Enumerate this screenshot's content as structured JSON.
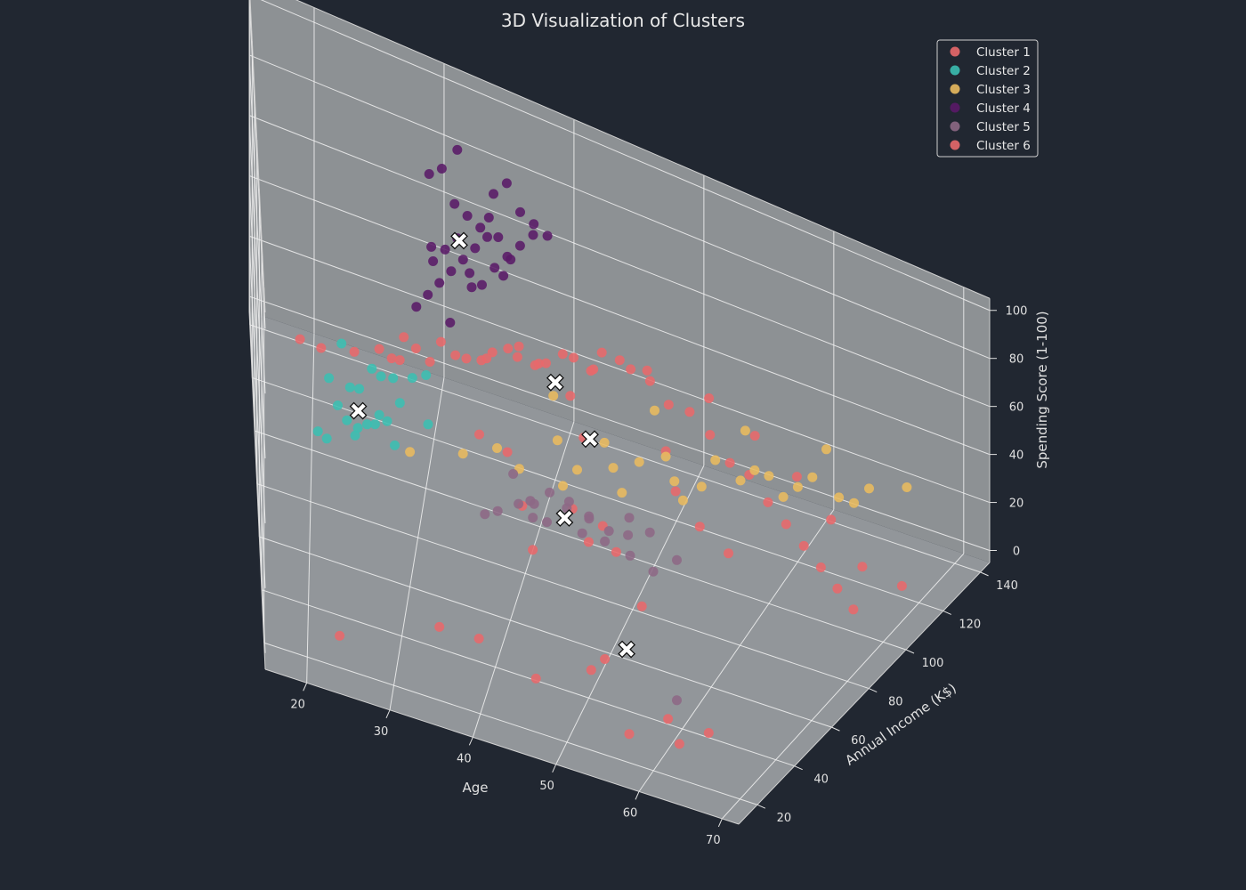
{
  "chart_data": {
    "type": "scatter",
    "title": "3D Visualization of Clusters",
    "xlabel": "Age",
    "ylabel": "Annual Income (K$)",
    "zlabel": "Spending Score (1-100)",
    "x_ticks": [
      20,
      30,
      40,
      50,
      60,
      70
    ],
    "y_ticks": [
      20,
      40,
      60,
      80,
      100,
      120,
      140
    ],
    "z_ticks": [
      0,
      20,
      40,
      60,
      80,
      100
    ],
    "xlim": [
      15,
      72
    ],
    "ylim": [
      10,
      145
    ],
    "zlim": [
      -5,
      105
    ],
    "legend_position": "top-right",
    "series": [
      {
        "name": "Cluster 1",
        "color": "#e8696b",
        "points": [
          [
            58,
            15,
            10
          ],
          [
            24,
            8,
            15
          ],
          [
            47,
            15,
            18
          ],
          [
            63,
            20,
            8
          ],
          [
            61,
            24,
            12
          ],
          [
            40,
            18,
            22
          ],
          [
            52,
            26,
            18
          ],
          [
            53,
            30,
            20
          ],
          [
            66,
            22,
            14
          ],
          [
            35,
            24,
            16
          ],
          [
            44,
            40,
            40
          ],
          [
            55,
            45,
            30
          ],
          [
            42,
            50,
            45
          ],
          [
            48,
            58,
            34
          ],
          [
            51,
            56,
            36
          ],
          [
            46,
            62,
            40
          ],
          [
            39,
            70,
            44
          ],
          [
            36,
            75,
            42
          ],
          [
            49,
            62,
            38
          ],
          [
            57,
            74,
            40
          ],
          [
            54,
            80,
            44
          ],
          [
            45,
            85,
            46
          ],
          [
            60,
            72,
            36
          ],
          [
            52,
            90,
            48
          ],
          [
            43,
            95,
            50
          ],
          [
            38,
            100,
            52
          ]
        ]
      },
      {
        "name": "Cluster 2",
        "color": "#3bbfb2",
        "points": [
          [
            22,
            38,
            52
          ],
          [
            25,
            40,
            55
          ],
          [
            21,
            42,
            50
          ],
          [
            27,
            44,
            58
          ],
          [
            24,
            46,
            54
          ],
          [
            23,
            48,
            56
          ],
          [
            26,
            50,
            52
          ],
          [
            28,
            52,
            54
          ],
          [
            22,
            55,
            58
          ],
          [
            25,
            58,
            56
          ],
          [
            29,
            60,
            55
          ],
          [
            24,
            62,
            52
          ],
          [
            27,
            64,
            58
          ],
          [
            30,
            66,
            60
          ],
          [
            26,
            68,
            56
          ],
          [
            28,
            70,
            54
          ],
          [
            23,
            72,
            57
          ],
          [
            31,
            74,
            56
          ],
          [
            27,
            58,
            50
          ],
          [
            25,
            52,
            48
          ],
          [
            29,
            46,
            52
          ],
          [
            32,
            56,
            55
          ]
        ]
      },
      {
        "name": "Cluster 3",
        "color": "#e9bb5f",
        "points": [
          [
            30,
            60,
            40
          ],
          [
            35,
            65,
            42
          ],
          [
            38,
            70,
            44
          ],
          [
            40,
            72,
            38
          ],
          [
            45,
            78,
            40
          ],
          [
            48,
            82,
            42
          ],
          [
            50,
            86,
            44
          ],
          [
            53,
            88,
            40
          ],
          [
            55,
            92,
            38
          ],
          [
            58,
            96,
            42
          ],
          [
            60,
            100,
            44
          ],
          [
            62,
            104,
            40
          ],
          [
            65,
            108,
            38
          ],
          [
            67,
            112,
            42
          ],
          [
            43,
            80,
            46
          ],
          [
            47,
            84,
            48
          ],
          [
            52,
            90,
            46
          ],
          [
            56,
            94,
            48
          ],
          [
            59,
            98,
            46
          ],
          [
            63,
            106,
            44
          ],
          [
            44,
            74,
            36
          ],
          [
            49,
            80,
            36
          ],
          [
            54,
            86,
            36
          ],
          [
            61,
            102,
            36
          ],
          [
            66,
            110,
            36
          ],
          [
            42,
            88,
            54
          ],
          [
            50,
            100,
            52
          ],
          [
            57,
            108,
            50
          ],
          [
            63,
            115,
            48
          ],
          [
            69,
            120,
            40
          ]
        ]
      },
      {
        "name": "Cluster 4",
        "color": "#5a1a68",
        "points": [
          [
            30,
            76,
            76
          ],
          [
            31,
            78,
            80
          ],
          [
            32,
            80,
            84
          ],
          [
            33,
            82,
            88
          ],
          [
            34,
            84,
            92
          ],
          [
            35,
            86,
            96
          ],
          [
            36,
            88,
            100
          ],
          [
            31,
            90,
            82
          ],
          [
            32,
            92,
            86
          ],
          [
            33,
            94,
            90
          ],
          [
            34,
            96,
            78
          ],
          [
            35,
            98,
            74
          ],
          [
            36,
            100,
            80
          ],
          [
            37,
            102,
            84
          ],
          [
            38,
            104,
            88
          ],
          [
            39,
            106,
            92
          ],
          [
            30,
            108,
            96
          ],
          [
            31,
            110,
            98
          ],
          [
            32,
            112,
            86
          ],
          [
            33,
            114,
            82
          ],
          [
            34,
            116,
            78
          ],
          [
            35,
            118,
            90
          ],
          [
            36,
            120,
            94
          ],
          [
            37,
            122,
            84
          ],
          [
            38,
            124,
            80
          ],
          [
            39,
            126,
            76
          ],
          [
            33,
            80,
            72
          ],
          [
            34,
            100,
            70
          ],
          [
            36,
            106,
            86
          ],
          [
            32,
            118,
            100
          ],
          [
            35,
            110,
            88
          ],
          [
            37,
            96,
            82
          ],
          [
            38,
            90,
            94
          ],
          [
            31,
            86,
            90
          ]
        ]
      },
      {
        "name": "Cluster 5",
        "color": "#8d6985",
        "points": [
          [
            48,
            20,
            80
          ],
          [
            50,
            22,
            78
          ],
          [
            52,
            24,
            74
          ],
          [
            46,
            22,
            72
          ],
          [
            54,
            26,
            70
          ],
          [
            44,
            24,
            68
          ],
          [
            56,
            28,
            76
          ],
          [
            42,
            20,
            66
          ],
          [
            58,
            30,
            72
          ],
          [
            47,
            26,
            64
          ],
          [
            53,
            30,
            62
          ],
          [
            49,
            28,
            70
          ],
          [
            51,
            32,
            66
          ],
          [
            45,
            30,
            60
          ],
          [
            55,
            34,
            64
          ],
          [
            57,
            22,
            68
          ],
          [
            43,
            28,
            74
          ],
          [
            59,
            26,
            62
          ],
          [
            40,
            26,
            58
          ],
          [
            61,
            30,
            66
          ],
          [
            50,
            34,
            58
          ],
          [
            46,
            18,
            76
          ],
          [
            62,
            24,
            20
          ]
        ]
      },
      {
        "name": "Cluster 6",
        "color": "#e8696b",
        "points": [
          [
            27,
            100,
            35
          ],
          [
            29,
            104,
            38
          ],
          [
            31,
            108,
            40
          ],
          [
            33,
            112,
            34
          ],
          [
            35,
            116,
            36
          ],
          [
            37,
            120,
            38
          ],
          [
            39,
            124,
            32
          ],
          [
            41,
            128,
            34
          ],
          [
            43,
            132,
            36
          ],
          [
            45,
            136,
            30
          ],
          [
            30,
            110,
            30
          ],
          [
            32,
            114,
            32
          ],
          [
            34,
            118,
            30
          ],
          [
            36,
            122,
            34
          ],
          [
            38,
            126,
            28
          ],
          [
            40,
            130,
            32
          ],
          [
            42,
            134,
            26
          ],
          [
            44,
            138,
            30
          ],
          [
            26,
            96,
            40
          ],
          [
            28,
            102,
            42
          ],
          [
            46,
            140,
            28
          ],
          [
            48,
            136,
            22
          ],
          [
            50,
            132,
            26
          ],
          [
            52,
            128,
            24
          ],
          [
            54,
            124,
            20
          ],
          [
            56,
            120,
            22
          ],
          [
            58,
            116,
            18
          ],
          [
            60,
            112,
            16
          ],
          [
            62,
            108,
            14
          ],
          [
            64,
            104,
            12
          ],
          [
            66,
            100,
            10
          ],
          [
            68,
            96,
            8
          ],
          [
            35,
            106,
            42
          ],
          [
            39,
            114,
            40
          ],
          [
            43,
            122,
            38
          ],
          [
            47,
            130,
            34
          ],
          [
            51,
            138,
            28
          ],
          [
            55,
            134,
            24
          ],
          [
            59,
            128,
            20
          ],
          [
            63,
            118,
            18
          ],
          [
            67,
            108,
            14
          ],
          [
            28,
            90,
            44
          ],
          [
            24,
            84,
            46
          ],
          [
            21,
            78,
            48
          ],
          [
            19,
            88,
            40
          ],
          [
            71,
            104,
            16
          ]
        ]
      }
    ],
    "centroids": [
      [
        56,
        26,
        30
      ],
      [
        25,
        54,
        52
      ],
      [
        45,
        92,
        40
      ],
      [
        33,
        98,
        86
      ],
      [
        49,
        26,
        68
      ],
      [
        40,
        120,
        30
      ]
    ]
  }
}
